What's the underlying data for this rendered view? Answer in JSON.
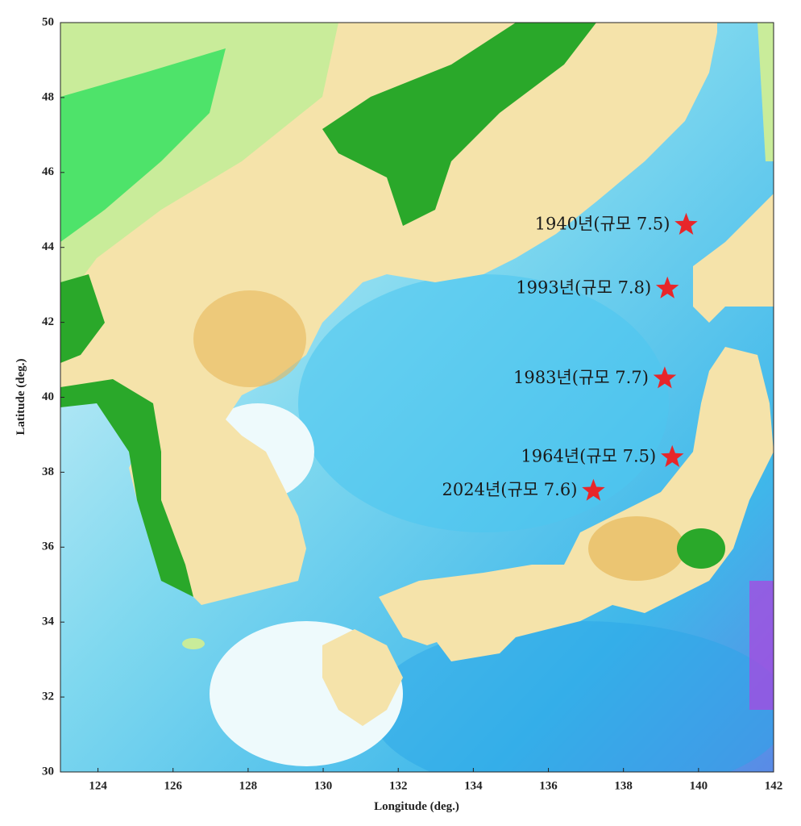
{
  "chart_data": {
    "type": "scatter",
    "x_label": "Longitude (deg.)",
    "y_label": "Latitude (deg.)",
    "xlim": [
      123,
      142
    ],
    "ylim": [
      30,
      50
    ],
    "xticks": [
      124,
      126,
      128,
      130,
      132,
      134,
      136,
      138,
      140,
      142
    ],
    "yticks": [
      30,
      32,
      34,
      36,
      38,
      40,
      42,
      44,
      46,
      48,
      50
    ],
    "x": [
      139.67,
      139.17,
      139.1,
      139.3,
      137.2
    ],
    "values": [
      44.6,
      42.9,
      40.5,
      38.4,
      37.5
    ],
    "labels": [
      "1940년(규모 7.5)",
      "1993년(규모 7.8)",
      "1983년(규모 7.7)",
      "1964년(규모 7.5)",
      "2024년(규모 7.6)"
    ],
    "color": "#e8262a"
  }
}
